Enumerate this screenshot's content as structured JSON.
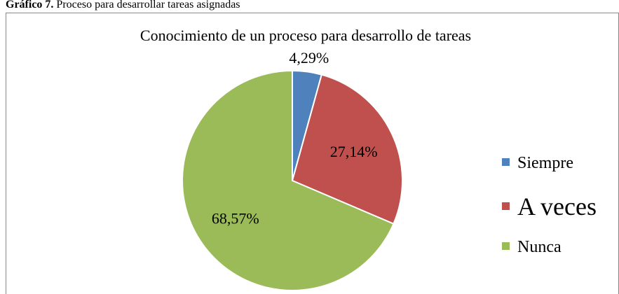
{
  "caption": {
    "label": "Gráfico 7.",
    "text": "Proceso para desarrollar tareas asignadas"
  },
  "chart_data": {
    "type": "pie",
    "title": "Conocimiento de un proceso para desarrollo de tareas",
    "categories": [
      "Siempre",
      "A veces",
      "Nunca"
    ],
    "values": [
      4.29,
      27.14,
      68.57
    ],
    "value_labels": [
      "4,29%",
      "27,14%",
      "68,57%"
    ],
    "colors": [
      "#4f81bd",
      "#c0504d",
      "#9bbb59"
    ],
    "legend": "right"
  }
}
